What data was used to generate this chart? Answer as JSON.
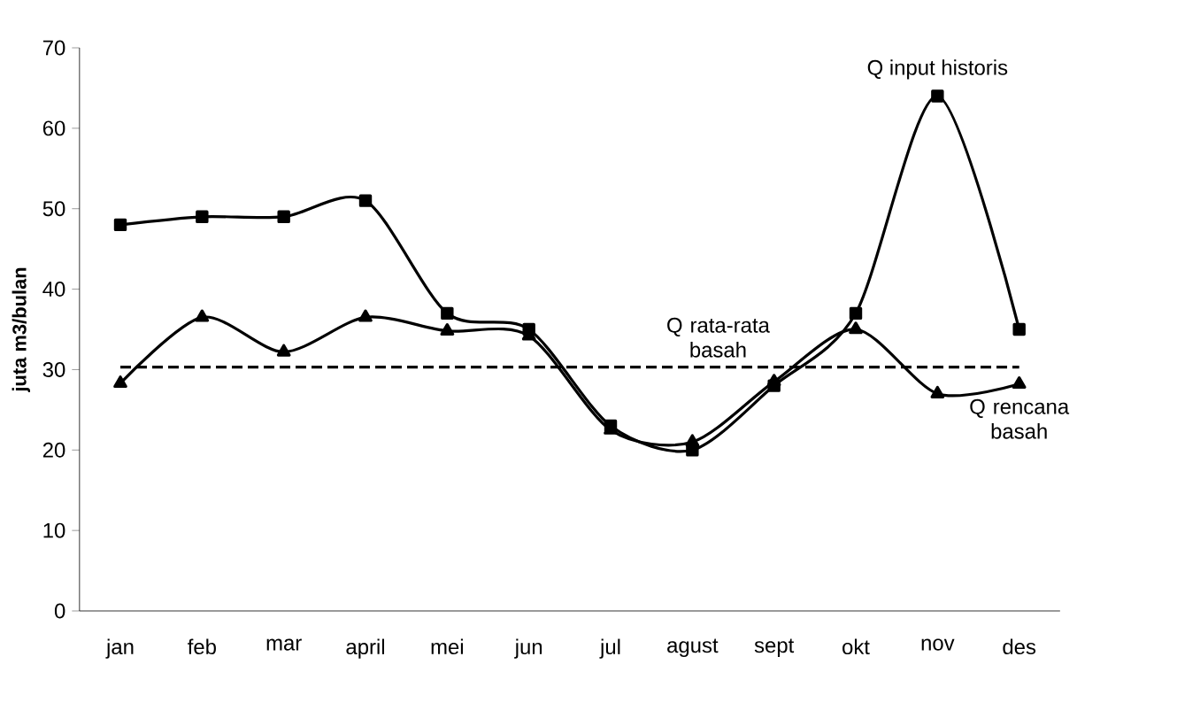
{
  "chart_data": {
    "type": "line",
    "ylabel": "juta m3/bulan",
    "categories": [
      "jan",
      "feb",
      "mar",
      "april",
      "mei",
      "jun",
      "jul",
      "agust",
      "sept",
      "okt",
      "nov",
      "des"
    ],
    "series": [
      {
        "name": "Q input historis",
        "color": "#000000",
        "marker": "square",
        "values": [
          48,
          49,
          49,
          51,
          37,
          35,
          23,
          20,
          28,
          37,
          64,
          35
        ]
      },
      {
        "name": "Q rencana basah",
        "color": "#000000",
        "marker": "triangle",
        "values": [
          28.3,
          36.5,
          32.2,
          36.5,
          34.8,
          34.2,
          22.5,
          21,
          28.5,
          35,
          27,
          28.2
        ]
      }
    ],
    "ylim": [
      0,
      70
    ],
    "yticks": [
      0,
      10,
      20,
      30,
      40,
      50,
      60,
      70
    ],
    "ref_lines": [
      {
        "axis": "y",
        "value": 30.3,
        "label": "Q rata-rata basah",
        "color": "#000000",
        "line_style": "dashed"
      }
    ],
    "grid": false,
    "line_style": "solid"
  }
}
